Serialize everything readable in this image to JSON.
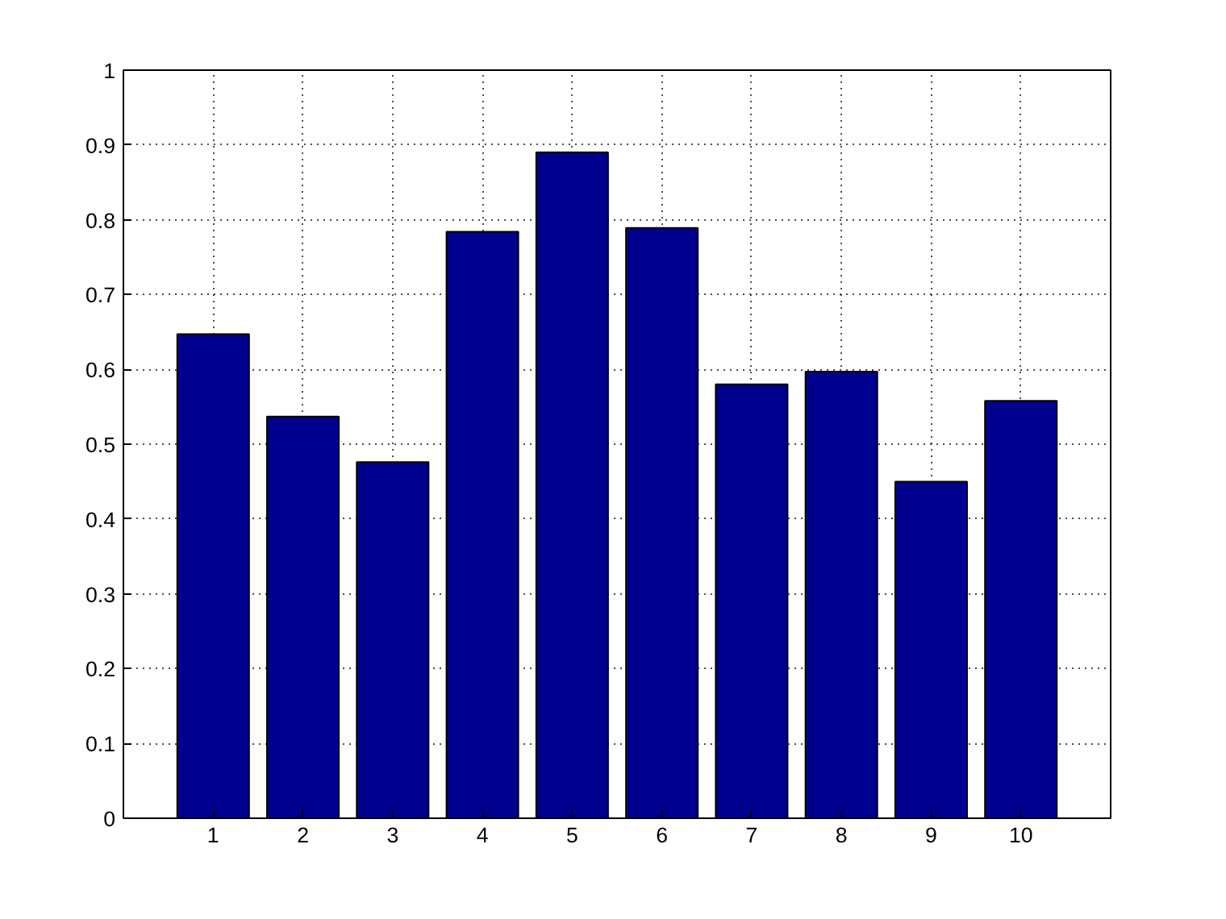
{
  "chart_data": {
    "type": "bar",
    "categories": [
      "1",
      "2",
      "3",
      "4",
      "5",
      "6",
      "7",
      "8",
      "9",
      "10"
    ],
    "values": [
      0.647,
      0.537,
      0.476,
      0.784,
      0.89,
      0.789,
      0.58,
      0.597,
      0.45,
      0.558
    ],
    "color": "#00008f",
    "ylim": [
      0,
      1
    ],
    "yticks": [
      0,
      0.1,
      0.2,
      0.3,
      0.4,
      0.5,
      0.6,
      0.7,
      0.8,
      0.9,
      1
    ],
    "grid": true
  }
}
